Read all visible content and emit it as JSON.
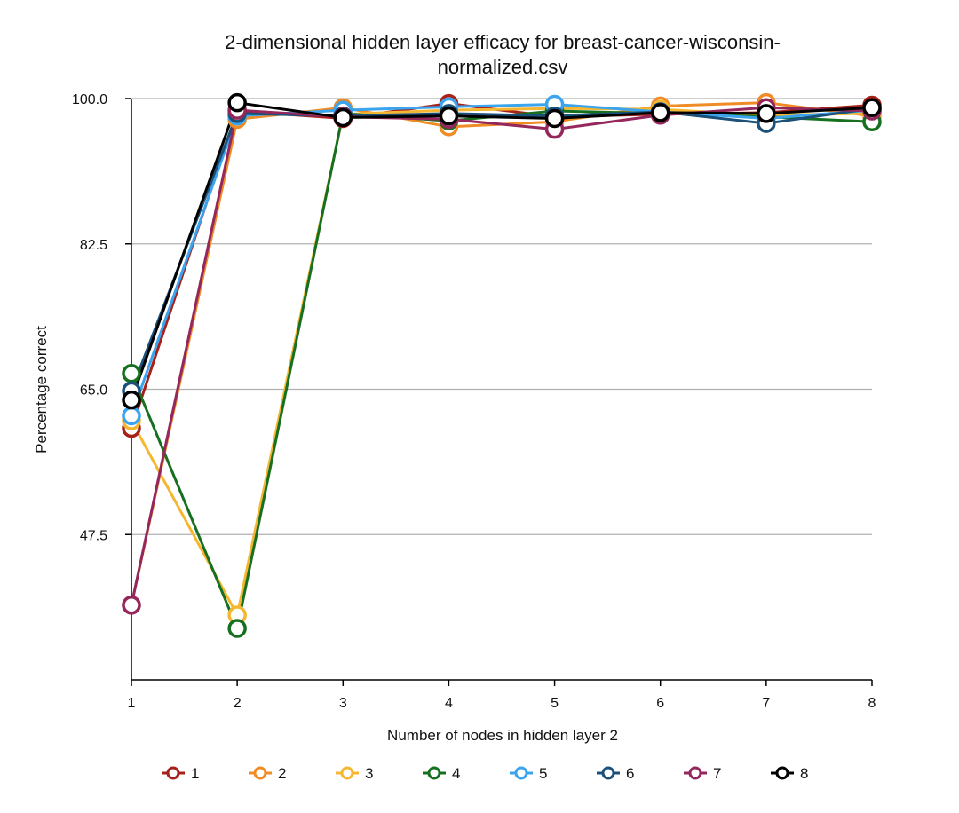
{
  "chart_data": {
    "type": "line",
    "title_lines": [
      "2-dimensional hidden layer efficacy for breast-cancer-wisconsin-",
      "normalized.csv"
    ],
    "xlabel": "Number of nodes in hidden layer 2",
    "ylabel": "Percentage correct",
    "x": [
      1,
      2,
      3,
      4,
      5,
      6,
      7,
      8
    ],
    "x_tick_labels": [
      "1",
      "2",
      "3",
      "4",
      "5",
      "6",
      "7",
      "8"
    ],
    "ylim": [
      30,
      100
    ],
    "y_ticks": [
      47.5,
      65.0,
      82.5,
      100.0
    ],
    "y_tick_labels": [
      "47.5",
      "65.0",
      "82.5",
      "100.0"
    ],
    "grid": "horizontal",
    "legend_position": "bottom",
    "series": [
      {
        "name": "1",
        "color": "#a8201a",
        "values": [
          60.3,
          98.5,
          97.6,
          99.4,
          97.8,
          98.1,
          98.3,
          99.2
        ]
      },
      {
        "name": "2",
        "color": "#f08c25",
        "values": [
          39.0,
          97.5,
          98.9,
          96.6,
          97.2,
          99.1,
          99.5,
          97.9
        ]
      },
      {
        "name": "3",
        "color": "#f5b731",
        "values": [
          61.2,
          37.8,
          98.1,
          98.6,
          98.8,
          98.7,
          98.0,
          98.2
        ]
      },
      {
        "name": "4",
        "color": "#17701f",
        "values": [
          66.9,
          36.2,
          98.2,
          97.3,
          98.5,
          98.2,
          97.8,
          97.2
        ]
      },
      {
        "name": "5",
        "color": "#3aa4ee",
        "values": [
          61.8,
          97.9,
          98.6,
          99.0,
          99.3,
          98.4,
          97.6,
          98.6
        ]
      },
      {
        "name": "6",
        "color": "#1a5079",
        "values": [
          64.8,
          98.2,
          97.9,
          98.2,
          97.9,
          98.4,
          97.0,
          98.8
        ]
      },
      {
        "name": "7",
        "color": "#94275c",
        "values": [
          39.0,
          98.6,
          97.8,
          97.5,
          96.3,
          98.0,
          98.9,
          98.5
        ]
      },
      {
        "name": "8",
        "color": "#000000",
        "values": [
          63.7,
          99.5,
          97.7,
          97.9,
          97.6,
          98.3,
          98.2,
          98.9
        ]
      }
    ]
  }
}
